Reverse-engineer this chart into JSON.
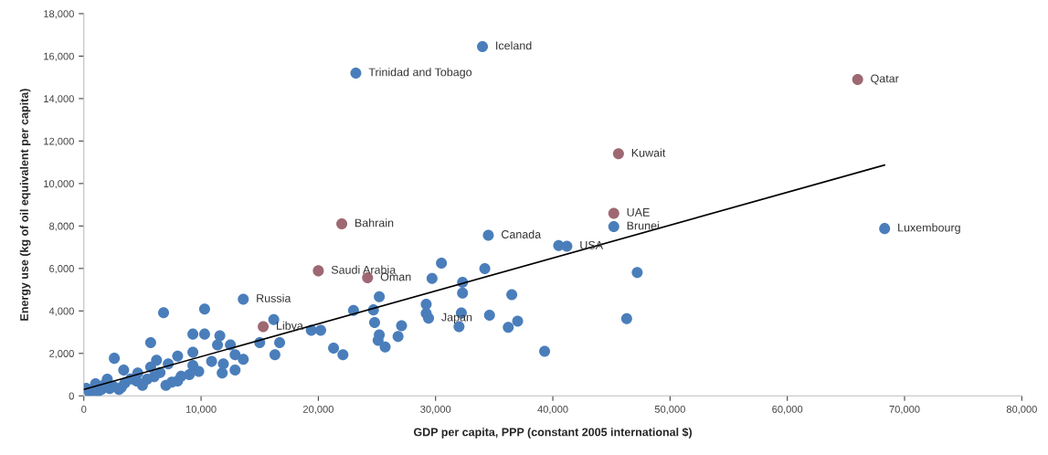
{
  "chart_data": {
    "type": "scatter",
    "xlabel": "GDP per capita, PPP (constant 2005 international $)",
    "ylabel": "Energy use (kg of oil equivalent per capita)",
    "xlim": [
      0,
      80000
    ],
    "xticks": [
      {
        "value": 0,
        "label": "0"
      },
      {
        "value": 10000,
        "label": "10,000"
      },
      {
        "value": 20000,
        "label": "20,000"
      },
      {
        "value": 30000,
        "label": "30,000"
      },
      {
        "value": 40000,
        "label": "40,000"
      },
      {
        "value": 50000,
        "label": "50,000"
      },
      {
        "value": 60000,
        "label": "60,000"
      },
      {
        "value": 70000,
        "label": "70,000"
      },
      {
        "value": 80000,
        "label": "80,000"
      }
    ],
    "ylim": [
      0,
      18000
    ],
    "yticks": [
      {
        "value": 0,
        "label": "0"
      },
      {
        "value": 2000,
        "label": "2,000"
      },
      {
        "value": 4000,
        "label": "4,000"
      },
      {
        "value": 6000,
        "label": "6,000"
      },
      {
        "value": 8000,
        "label": "8,000"
      },
      {
        "value": 10000,
        "label": "10,000"
      },
      {
        "value": 12000,
        "label": "12,000"
      },
      {
        "value": 14000,
        "label": "14,000"
      },
      {
        "value": 16000,
        "label": "16,000"
      },
      {
        "value": 18000,
        "label": "18,000"
      }
    ],
    "grid": false,
    "legend": false,
    "marker": "circle",
    "series": [
      {
        "color": "#4a7ebb",
        "x": [
          34000,
          23200,
          68300,
          45200,
          40500,
          41200,
          34500,
          47200,
          46300,
          39300,
          30500,
          34200,
          29700,
          32300,
          32300,
          25200,
          36500,
          23000,
          24700,
          29200,
          29200,
          29400,
          32200,
          32000,
          34600,
          37000,
          36200,
          24800,
          27100,
          25200,
          25100,
          26800,
          25700,
          13600,
          6800,
          10300,
          16200,
          5700,
          2600,
          9300,
          10300,
          11600,
          11400,
          12500,
          9300,
          8000,
          6200,
          15000,
          16700,
          16300,
          19400,
          20200,
          21300,
          22100,
          12900,
          13600,
          10900,
          11900,
          11800,
          12900,
          9300,
          9800,
          3400,
          4600,
          5700,
          7200,
          8300,
          7500,
          5400,
          2000,
          1000,
          200,
          500,
          1500,
          2500,
          3500,
          4500,
          3000,
          6000,
          7000,
          8000,
          9000,
          1200,
          2200,
          4000,
          5000,
          6500,
          1800,
          3200
        ],
        "values": [
          16450,
          15200,
          7880,
          7970,
          7080,
          7050,
          7560,
          5810,
          3640,
          2100,
          6250,
          5990,
          5530,
          5350,
          4840,
          4670,
          4770,
          4020,
          4050,
          4310,
          3880,
          3660,
          3910,
          3260,
          3800,
          3520,
          3230,
          3450,
          3300,
          2870,
          2610,
          2800,
          2300,
          4550,
          3920,
          4090,
          3590,
          2510,
          1770,
          2910,
          2910,
          2830,
          2400,
          2400,
          2050,
          1870,
          1680,
          2510,
          2510,
          1940,
          3090,
          3090,
          2250,
          1940,
          1940,
          1720,
          1620,
          1510,
          1080,
          1220,
          1430,
          1150,
          1220,
          1080,
          1360,
          1510,
          930,
          650,
          790,
          790,
          570,
          360,
          150,
          300,
          450,
          600,
          700,
          300,
          900,
          500,
          700,
          1000,
          200,
          350,
          800,
          500,
          1100,
          550,
          400
        ]
      },
      {
        "color": "#9e6872",
        "x": [
          66000,
          45600,
          45200,
          22000,
          20000,
          24200,
          15300
        ],
        "values": [
          14900,
          11400,
          8600,
          8100,
          5890,
          5560,
          3260
        ]
      },
      {
        "type": "line",
        "color": "#000000",
        "x": [
          0,
          68300
        ],
        "values": [
          300,
          10870
        ],
        "marker": "none"
      }
    ],
    "annotations": [
      {
        "text": "Iceland",
        "x": 34000,
        "y": 16450
      },
      {
        "text": "Trinidad and Tobago",
        "x": 23200,
        "y": 15200
      },
      {
        "text": "Qatar",
        "x": 66000,
        "y": 14900
      },
      {
        "text": "Kuwait",
        "x": 45600,
        "y": 11400
      },
      {
        "text": "UAE",
        "x": 45200,
        "y": 8600
      },
      {
        "text": "Brunei",
        "x": 45200,
        "y": 7970
      },
      {
        "text": "Luxembourg",
        "x": 68300,
        "y": 7880
      },
      {
        "text": "Bahrain",
        "x": 22000,
        "y": 8100
      },
      {
        "text": "Canada",
        "x": 34500,
        "y": 7560
      },
      {
        "text": "USA",
        "x": 41200,
        "y": 7050
      },
      {
        "text": "Saudi Arabia",
        "x": 20000,
        "y": 5890
      },
      {
        "text": "Oman",
        "x": 24200,
        "y": 5560
      },
      {
        "text": "Russia",
        "x": 13600,
        "y": 4550
      },
      {
        "text": "Libya",
        "x": 15300,
        "y": 3260
      },
      {
        "text": "Japan",
        "x": 29400,
        "y": 3660
      }
    ]
  }
}
